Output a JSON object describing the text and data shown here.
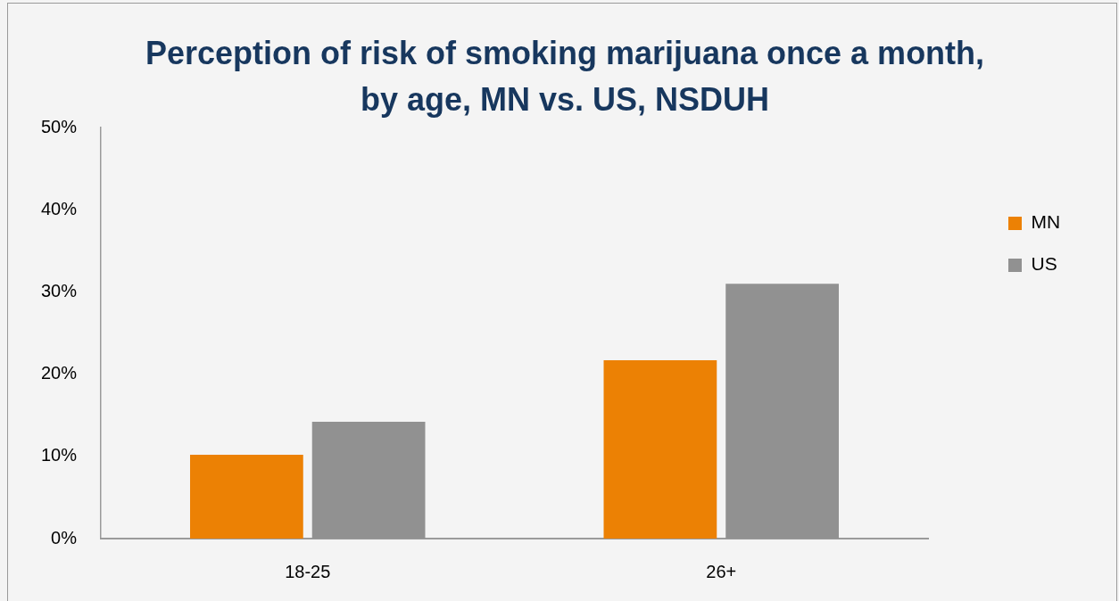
{
  "chart_data": {
    "type": "bar",
    "title": "Perception of risk of smoking marijuana once a month, by age, MN vs. US, NSDUH",
    "categories": [
      "18-25",
      "26+"
    ],
    "series": [
      {
        "name": "MN",
        "color": "#ec8104",
        "values": [
          10.2,
          21.7
        ]
      },
      {
        "name": "US",
        "color": "#919191",
        "values": [
          14.2,
          31
        ]
      }
    ],
    "ylim": [
      0,
      50
    ],
    "yticks": [
      {
        "value": 0,
        "label": "0%"
      },
      {
        "value": 10,
        "label": "10%"
      },
      {
        "value": 20,
        "label": "20%"
      },
      {
        "value": 30,
        "label": "30%"
      },
      {
        "value": 40,
        "label": "40%"
      },
      {
        "value": 50,
        "label": "50%"
      }
    ],
    "grid": false,
    "legend": "right"
  }
}
